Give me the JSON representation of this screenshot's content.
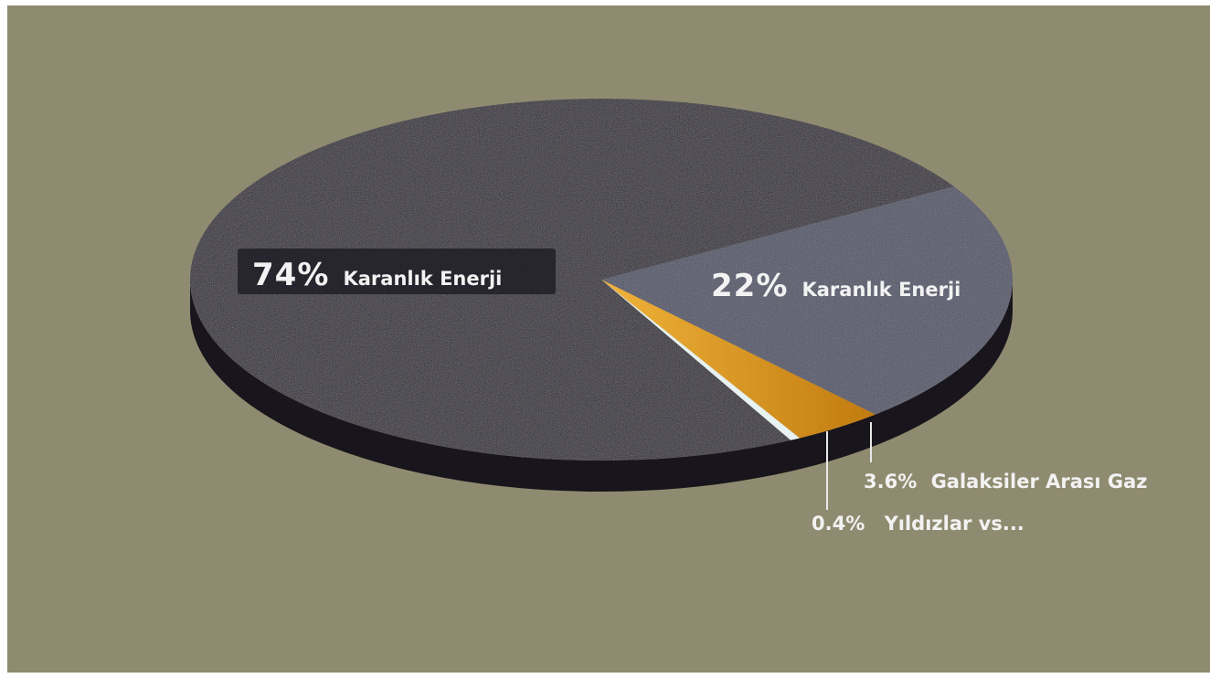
{
  "chart_data": {
    "type": "pie",
    "slices": [
      {
        "pct_label": "74%",
        "name": "Karanlık Enerji",
        "value": 74,
        "color": "#2b2733"
      },
      {
        "pct_label": "22%",
        "name": "Karanlık Enerji",
        "value": 22,
        "color": "#4e5064"
      },
      {
        "pct_label": "3.6%",
        "name": "Galaksiler Arası Gaz",
        "value": 3.6,
        "color": "#d7921c"
      },
      {
        "pct_label": "0.4%",
        "name": "Yıldızlar vs...",
        "value": 0.4,
        "color": "#e8f2f0"
      }
    ],
    "colors": {
      "background": "#8f8b70",
      "side": "#18151c"
    }
  }
}
